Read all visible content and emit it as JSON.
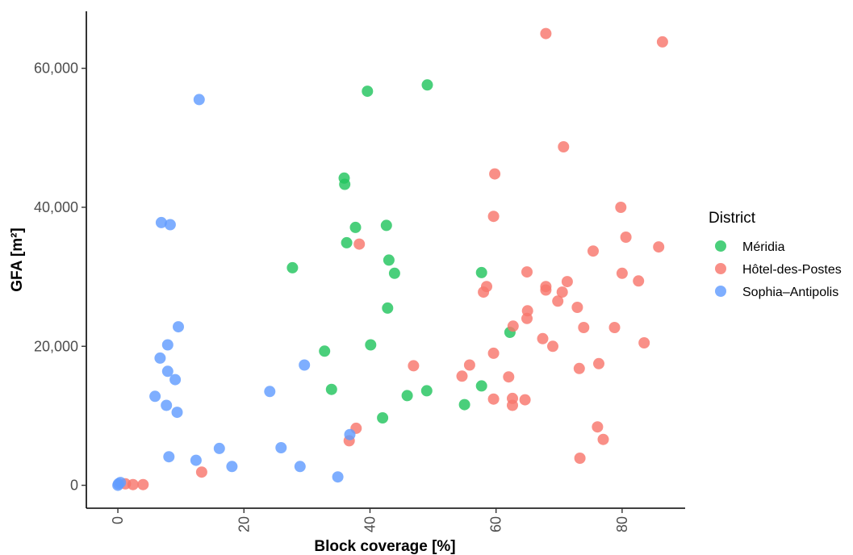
{
  "chart_data": {
    "type": "scatter",
    "xlabel": "Block coverage [%]",
    "ylabel": "GFA [m²]",
    "xlim": [
      -5,
      90
    ],
    "ylim": [
      -3300,
      68200
    ],
    "x_ticks": [
      0,
      20,
      40,
      60,
      80
    ],
    "x_tick_labels": [
      "0",
      "20",
      "40",
      "60",
      "80"
    ],
    "y_ticks": [
      0,
      20000,
      40000,
      60000
    ],
    "y_tick_labels": [
      "0",
      "20,000",
      "40,000",
      "60,000"
    ],
    "grid": false,
    "legend_title": "District",
    "legend_position": "right",
    "series": [
      {
        "name": "Méridia",
        "color": "#22c55e",
        "points": [
          {
            "x": 39.6,
            "y": 56700
          },
          {
            "x": 49.1,
            "y": 57600
          },
          {
            "x": 35.9,
            "y": 44200
          },
          {
            "x": 36.0,
            "y": 43300
          },
          {
            "x": 37.7,
            "y": 37100
          },
          {
            "x": 42.6,
            "y": 37400
          },
          {
            "x": 36.3,
            "y": 34900
          },
          {
            "x": 43.0,
            "y": 32400
          },
          {
            "x": 27.7,
            "y": 31300
          },
          {
            "x": 43.9,
            "y": 30500
          },
          {
            "x": 57.7,
            "y": 30600
          },
          {
            "x": 42.8,
            "y": 25500
          },
          {
            "x": 62.2,
            "y": 22000
          },
          {
            "x": 40.1,
            "y": 20200
          },
          {
            "x": 32.8,
            "y": 19300
          },
          {
            "x": 57.7,
            "y": 14300
          },
          {
            "x": 33.9,
            "y": 13800
          },
          {
            "x": 49.0,
            "y": 13600
          },
          {
            "x": 45.9,
            "y": 12900
          },
          {
            "x": 55.0,
            "y": 11600
          },
          {
            "x": 42.0,
            "y": 9700
          }
        ]
      },
      {
        "name": "Hôtel-des-Postes",
        "color": "#f8766d",
        "points": [
          {
            "x": 67.9,
            "y": 65000
          },
          {
            "x": 86.4,
            "y": 63800
          },
          {
            "x": 70.7,
            "y": 48700
          },
          {
            "x": 59.8,
            "y": 44800
          },
          {
            "x": 79.8,
            "y": 40000
          },
          {
            "x": 59.6,
            "y": 38700
          },
          {
            "x": 80.6,
            "y": 35700
          },
          {
            "x": 38.3,
            "y": 34700
          },
          {
            "x": 85.8,
            "y": 34300
          },
          {
            "x": 75.4,
            "y": 33700
          },
          {
            "x": 64.9,
            "y": 30700
          },
          {
            "x": 80.0,
            "y": 30500
          },
          {
            "x": 82.6,
            "y": 29400
          },
          {
            "x": 71.3,
            "y": 29300
          },
          {
            "x": 58.5,
            "y": 28600
          },
          {
            "x": 67.9,
            "y": 28600
          },
          {
            "x": 67.9,
            "y": 28100
          },
          {
            "x": 70.5,
            "y": 27800
          },
          {
            "x": 58.0,
            "y": 27800
          },
          {
            "x": 69.8,
            "y": 26500
          },
          {
            "x": 72.9,
            "y": 25600
          },
          {
            "x": 65.0,
            "y": 25100
          },
          {
            "x": 64.9,
            "y": 24000
          },
          {
            "x": 62.7,
            "y": 22900
          },
          {
            "x": 73.9,
            "y": 22700
          },
          {
            "x": 78.8,
            "y": 22700
          },
          {
            "x": 67.4,
            "y": 21100
          },
          {
            "x": 83.5,
            "y": 20500
          },
          {
            "x": 69.0,
            "y": 20000
          },
          {
            "x": 59.6,
            "y": 19000
          },
          {
            "x": 76.3,
            "y": 17500
          },
          {
            "x": 55.8,
            "y": 17300
          },
          {
            "x": 46.9,
            "y": 17200
          },
          {
            "x": 73.2,
            "y": 16800
          },
          {
            "x": 54.6,
            "y": 15700
          },
          {
            "x": 62.0,
            "y": 15600
          },
          {
            "x": 62.6,
            "y": 12500
          },
          {
            "x": 59.6,
            "y": 12400
          },
          {
            "x": 64.6,
            "y": 12300
          },
          {
            "x": 62.6,
            "y": 11500
          },
          {
            "x": 37.8,
            "y": 8200
          },
          {
            "x": 76.1,
            "y": 8400
          },
          {
            "x": 77.0,
            "y": 6600
          },
          {
            "x": 36.7,
            "y": 6400
          },
          {
            "x": 73.3,
            "y": 3900
          },
          {
            "x": 13.3,
            "y": 1900
          },
          {
            "x": 1.2,
            "y": 200
          },
          {
            "x": 2.4,
            "y": 100
          },
          {
            "x": 4.0,
            "y": 100
          }
        ]
      },
      {
        "name": "Sophia–Antipolis",
        "color": "#619cff",
        "points": [
          {
            "x": 12.9,
            "y": 55500
          },
          {
            "x": 6.9,
            "y": 37800
          },
          {
            "x": 8.3,
            "y": 37500
          },
          {
            "x": 9.6,
            "y": 22800
          },
          {
            "x": 7.9,
            "y": 20200
          },
          {
            "x": 6.7,
            "y": 18300
          },
          {
            "x": 7.9,
            "y": 16400
          },
          {
            "x": 9.1,
            "y": 15200
          },
          {
            "x": 29.6,
            "y": 17300
          },
          {
            "x": 24.1,
            "y": 13500
          },
          {
            "x": 5.9,
            "y": 12800
          },
          {
            "x": 7.7,
            "y": 11500
          },
          {
            "x": 9.4,
            "y": 10500
          },
          {
            "x": 36.8,
            "y": 7300
          },
          {
            "x": 25.9,
            "y": 5400
          },
          {
            "x": 16.1,
            "y": 5300
          },
          {
            "x": 8.1,
            "y": 4100
          },
          {
            "x": 12.4,
            "y": 3600
          },
          {
            "x": 18.1,
            "y": 2700
          },
          {
            "x": 28.9,
            "y": 2700
          },
          {
            "x": 34.9,
            "y": 1200
          },
          {
            "x": 0.4,
            "y": 400
          },
          {
            "x": 0.1,
            "y": 200
          },
          {
            "x": 0.0,
            "y": 0
          }
        ]
      }
    ]
  }
}
